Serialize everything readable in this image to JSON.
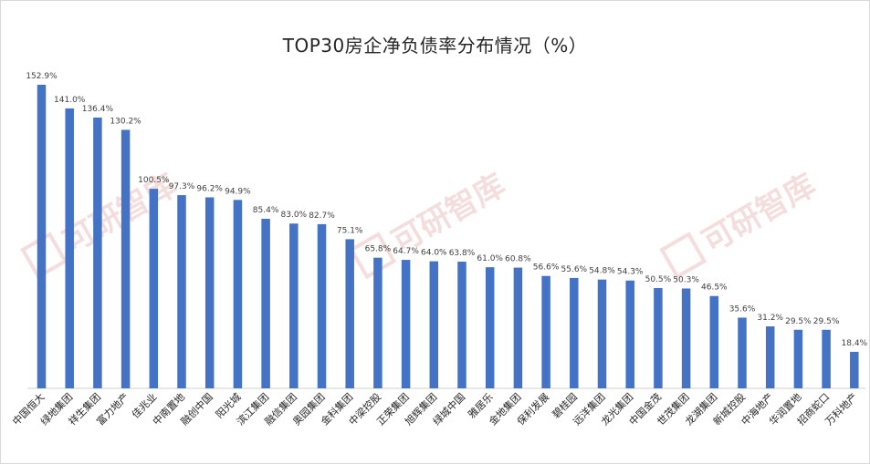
{
  "chart_data": {
    "type": "bar",
    "title": "TOP30房企净负债率分布情况（%）",
    "xlabel": "",
    "ylabel": "",
    "ylim": [
      0,
      160
    ],
    "grid": false,
    "legend": "none",
    "bar_color": "#4472c4",
    "label_suffix": "%",
    "categories": [
      "中国恒大",
      "绿地集团",
      "祥生集团",
      "富力地产",
      "佳兆业",
      "中南置地",
      "融创中国",
      "阳光城",
      "滨江集团",
      "融信集团",
      "奥园集团",
      "金科集团",
      "中梁控股",
      "正荣集团",
      "旭辉集团",
      "绿城中国",
      "雅居乐",
      "金地集团",
      "保利发展",
      "碧桂园",
      "远洋集团",
      "龙光集团",
      "中国金茂",
      "世茂集团",
      "龙湖集团",
      "新城控股",
      "中海地产",
      "华润置地",
      "招商蛇口",
      "万科地产"
    ],
    "values": [
      152.9,
      141.0,
      136.4,
      130.2,
      100.5,
      97.3,
      96.2,
      94.9,
      85.4,
      83.0,
      82.7,
      75.1,
      65.8,
      64.7,
      64.0,
      63.8,
      61.0,
      60.8,
      56.6,
      55.6,
      54.8,
      54.3,
      50.5,
      50.3,
      46.5,
      35.6,
      31.2,
      29.5,
      29.5,
      18.4
    ]
  },
  "watermark": {
    "text": "可研智库",
    "color": "#e8b4b4"
  }
}
